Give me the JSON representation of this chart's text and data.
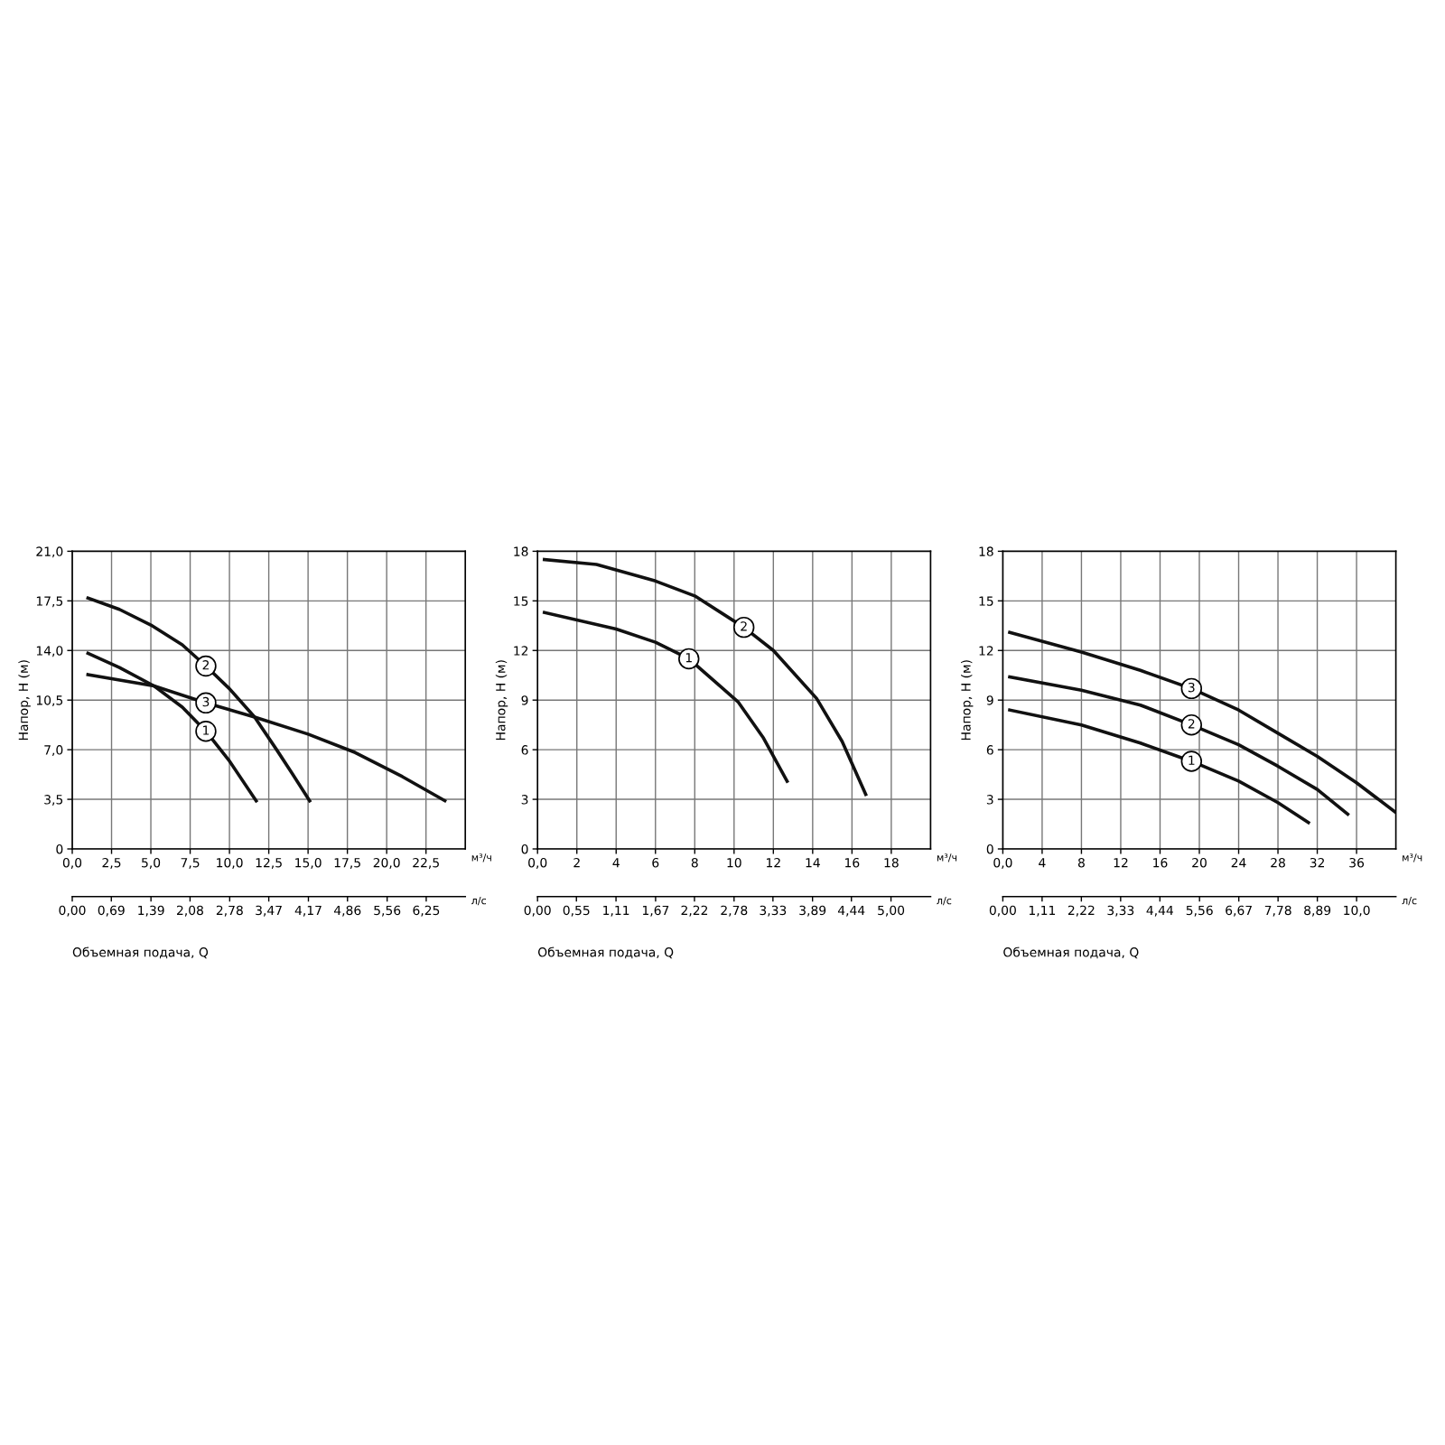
{
  "chart_data": [
    {
      "type": "line",
      "xlabel": "Объемная подача, Q",
      "ylabel": "Напор, H (м)",
      "xlim": [
        0,
        25
      ],
      "ylim": [
        0,
        21
      ],
      "xticks": [
        {
          "value": 0,
          "label": "0,0"
        },
        {
          "value": 2.5,
          "label": "2,5"
        },
        {
          "value": 5,
          "label": "5,0"
        },
        {
          "value": 7.5,
          "label": "7,5"
        },
        {
          "value": 10,
          "label": "10,0"
        },
        {
          "value": 12.5,
          "label": "12,5"
        },
        {
          "value": 15,
          "label": "15,0"
        },
        {
          "value": 17.5,
          "label": "17,5"
        },
        {
          "value": 20,
          "label": "20,0"
        },
        {
          "value": 22.5,
          "label": "22,5"
        }
      ],
      "yticks": [
        0,
        {
          "value": 3.5,
          "label": "3,5"
        },
        {
          "value": 7,
          "label": "7,0"
        },
        {
          "value": 10.5,
          "label": "10,5"
        },
        {
          "value": 14,
          "label": "14,0"
        },
        {
          "value": 17.5,
          "label": "17,5"
        },
        {
          "value": 21,
          "label": "21,0"
        }
      ],
      "x2lim": [
        0,
        6.94
      ],
      "x2ticks": [
        {
          "value": 0,
          "label": "0,00"
        },
        {
          "value": 0.69,
          "label": "0,69"
        },
        {
          "value": 1.39,
          "label": "1,39"
        },
        {
          "value": 2.08,
          "label": "2,08"
        },
        {
          "value": 2.78,
          "label": "2,78"
        },
        {
          "value": 3.47,
          "label": "3,47"
        },
        {
          "value": 4.17,
          "label": "4,17"
        },
        {
          "value": 4.86,
          "label": "4,86"
        },
        {
          "value": 5.56,
          "label": "5,56"
        },
        {
          "value": 6.25,
          "label": "6,25"
        }
      ],
      "grid": true,
      "line_style": "solid",
      "marker": "none",
      "series": [
        {
          "color": "#111111",
          "x": [
            1,
            3,
            5.2,
            7,
            8.5,
            10,
            11.7
          ],
          "values": [
            13.8,
            12.8,
            11.5,
            10.0,
            8.3,
            6.2,
            3.4
          ]
        },
        {
          "color": "#111111",
          "x": [
            1,
            3,
            5,
            7,
            8.5,
            10,
            11.6,
            13,
            14,
            15.1
          ],
          "values": [
            17.7,
            16.9,
            15.8,
            14.4,
            12.9,
            11.3,
            9.3,
            7.0,
            5.3,
            3.4
          ]
        },
        {
          "color": "#111111",
          "x": [
            1,
            5.2,
            8.5,
            11.6,
            15,
            18,
            21,
            23.7
          ],
          "values": [
            12.3,
            11.5,
            10.3,
            9.3,
            8.1,
            6.8,
            5.1,
            3.4
          ]
        }
      ],
      "annotations": [
        "м³/ч",
        "л/с",
        {
          "text": "1",
          "x": 8.5,
          "y": 8.3
        },
        {
          "text": "2",
          "x": 8.5,
          "y": 12.9
        },
        {
          "text": "3",
          "x": 8.5,
          "y": 10.3
        }
      ]
    },
    {
      "type": "line",
      "xlabel": "Объемная подача, Q",
      "ylabel": "Напор, H (м)",
      "xlim": [
        0,
        20
      ],
      "ylim": [
        0,
        18
      ],
      "xticks": [
        {
          "value": 0,
          "label": "0,0"
        },
        2,
        4,
        6,
        8,
        10,
        12,
        14,
        16,
        18
      ],
      "yticks": [
        0,
        3,
        6,
        9,
        12,
        15,
        18
      ],
      "x2lim": [
        0,
        5.56
      ],
      "x2ticks": [
        {
          "value": 0,
          "label": "0,00"
        },
        {
          "value": 0.55,
          "label": "0,55"
        },
        {
          "value": 1.11,
          "label": "1,11"
        },
        {
          "value": 1.67,
          "label": "1,67"
        },
        {
          "value": 2.22,
          "label": "2,22"
        },
        {
          "value": 2.78,
          "label": "2,78"
        },
        {
          "value": 3.33,
          "label": "3,33"
        },
        {
          "value": 3.89,
          "label": "3,89"
        },
        {
          "value": 4.44,
          "label": "4,44"
        },
        {
          "value": 5,
          "label": "5,00"
        }
      ],
      "grid": true,
      "line_style": "solid",
      "marker": "none",
      "series": [
        {
          "color": "#111111",
          "x": [
            0.35,
            4,
            6,
            7.7,
            10.2,
            11.5,
            12.7
          ],
          "values": [
            14.3,
            13.3,
            12.5,
            11.5,
            8.9,
            6.7,
            4.1
          ]
        },
        {
          "color": "#111111",
          "x": [
            0.35,
            3,
            6,
            8,
            10.5,
            12,
            14.2,
            15.5,
            16.7
          ],
          "values": [
            17.5,
            17.2,
            16.2,
            15.3,
            13.4,
            12.0,
            9.1,
            6.5,
            3.3
          ]
        }
      ],
      "annotations": [
        "м³/ч",
        "л/с",
        {
          "text": "1",
          "x": 7.7,
          "y": 11.5
        },
        {
          "text": "2",
          "x": 10.5,
          "y": 13.4
        }
      ]
    },
    {
      "type": "line",
      "xlabel": "Объемная подача, Q",
      "ylabel": "Напор, H (м)",
      "xlim": [
        0,
        40
      ],
      "ylim": [
        0,
        18
      ],
      "xticks": [
        {
          "value": 0,
          "label": "0,0"
        },
        4,
        8,
        12,
        16,
        20,
        24,
        28,
        32,
        36
      ],
      "yticks": [
        0,
        3,
        6,
        9,
        12,
        15,
        18
      ],
      "x2lim": [
        0,
        11.11
      ],
      "x2ticks": [
        {
          "value": 0,
          "label": "0,00"
        },
        {
          "value": 1.11,
          "label": "1,11"
        },
        {
          "value": 2.22,
          "label": "2,22"
        },
        {
          "value": 3.33,
          "label": "3,33"
        },
        {
          "value": 4.44,
          "label": "4,44"
        },
        {
          "value": 5.56,
          "label": "5,56"
        },
        {
          "value": 6.67,
          "label": "6,67"
        },
        {
          "value": 7.78,
          "label": "7,78"
        },
        {
          "value": 8.89,
          "label": "8,89"
        },
        {
          "value": 10,
          "label": "10,0"
        }
      ],
      "grid": true,
      "line_style": "solid",
      "marker": "none",
      "series": [
        {
          "color": "#111111",
          "x": [
            0.7,
            8,
            14,
            19.2,
            24,
            28,
            31.1
          ],
          "values": [
            8.4,
            7.5,
            6.4,
            5.3,
            4.1,
            2.8,
            1.6
          ]
        },
        {
          "color": "#111111",
          "x": [
            0.7,
            8,
            14,
            19.2,
            24,
            28,
            32,
            35.1
          ],
          "values": [
            10.4,
            9.6,
            8.7,
            7.5,
            6.3,
            5.0,
            3.6,
            2.1
          ]
        },
        {
          "color": "#111111",
          "x": [
            0.7,
            8,
            14,
            19.2,
            24,
            28,
            32,
            36,
            40
          ],
          "values": [
            13.1,
            11.9,
            10.8,
            9.7,
            8.4,
            7.0,
            5.6,
            4.0,
            2.2
          ]
        }
      ],
      "annotations": [
        "м³/ч",
        "л/с",
        {
          "text": "1",
          "x": 19.2,
          "y": 5.3
        },
        {
          "text": "2",
          "x": 19.2,
          "y": 7.5
        },
        {
          "text": "3",
          "x": 19.2,
          "y": 9.7
        }
      ]
    }
  ]
}
